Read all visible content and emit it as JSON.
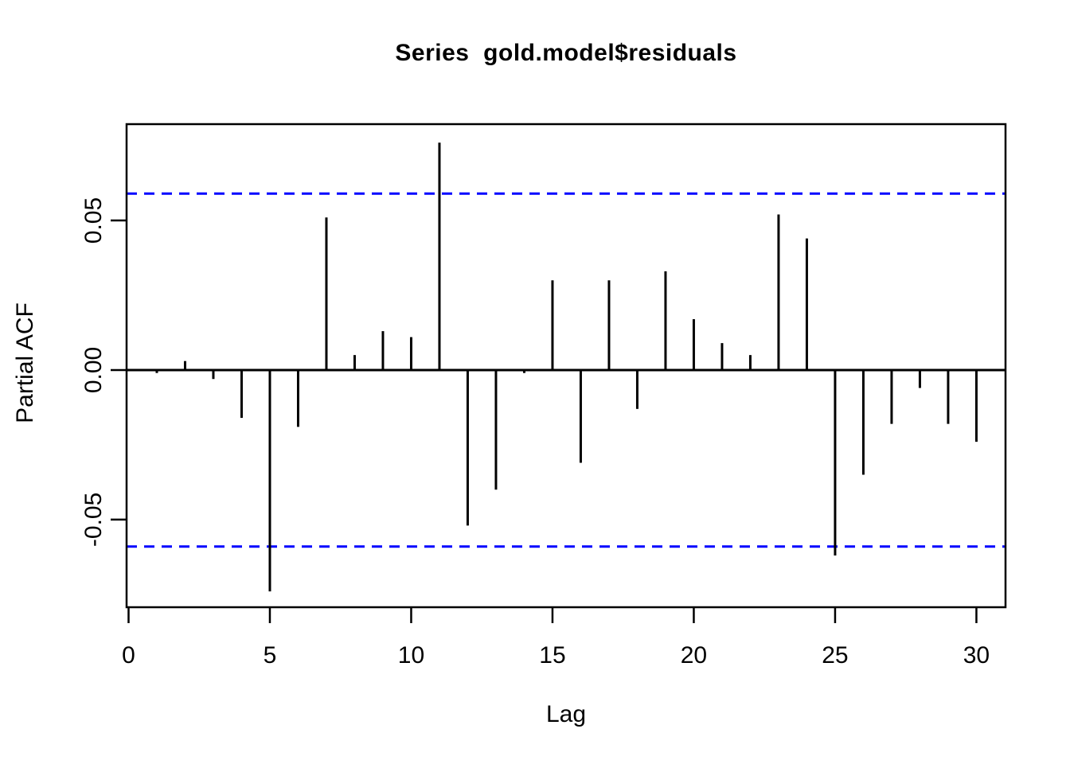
{
  "page": {
    "background": "#ffffff"
  },
  "chart_data": {
    "type": "bar",
    "variant": "pacf-stem-plot",
    "title": "Series  gold.model$residuals",
    "xlabel": "Lag",
    "ylabel": "Partial ACF",
    "x": [
      1,
      2,
      3,
      4,
      5,
      6,
      7,
      8,
      9,
      10,
      11,
      12,
      13,
      14,
      15,
      16,
      17,
      18,
      19,
      20,
      21,
      22,
      23,
      24,
      25,
      26,
      27,
      28,
      29,
      30
    ],
    "values": [
      -0.001,
      0.003,
      -0.003,
      -0.016,
      -0.074,
      -0.019,
      0.051,
      0.005,
      0.013,
      0.011,
      0.076,
      -0.052,
      -0.04,
      -0.001,
      0.03,
      -0.031,
      0.03,
      -0.013,
      0.033,
      0.017,
      0.009,
      0.005,
      0.052,
      0.044,
      -0.062,
      -0.035,
      -0.018,
      -0.006,
      -0.018,
      -0.024
    ],
    "confidence_interval": 0.059,
    "confidence_style": "dashed",
    "colors": {
      "bars": "#000000",
      "axis": "#000000",
      "confidence": "#0000ff",
      "background": "#ffffff"
    },
    "xlim": [
      -0.07,
      31.03
    ],
    "ylim": [
      -0.0793,
      0.0822
    ],
    "x_ticks": [
      0,
      5,
      10,
      15,
      20,
      25,
      30
    ],
    "x_tick_labels": [
      "0",
      "5",
      "10",
      "15",
      "20",
      "25",
      "30"
    ],
    "y_ticks": [
      -0.05,
      0,
      0.05
    ],
    "y_tick_labels": [
      "-0.05",
      "0.00",
      "0.05"
    ],
    "grid": false,
    "legend": false
  }
}
